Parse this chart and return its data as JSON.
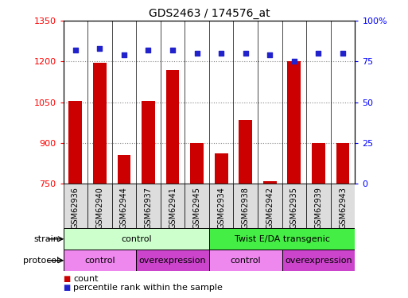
{
  "title": "GDS2463 / 174576_at",
  "samples": [
    "GSM62936",
    "GSM62940",
    "GSM62944",
    "GSM62937",
    "GSM62941",
    "GSM62945",
    "GSM62934",
    "GSM62938",
    "GSM62942",
    "GSM62935",
    "GSM62939",
    "GSM62943"
  ],
  "counts": [
    1055,
    1195,
    855,
    1055,
    1170,
    900,
    860,
    985,
    760,
    1200,
    900,
    900
  ],
  "percentile_ranks": [
    82,
    83,
    79,
    82,
    82,
    80,
    80,
    80,
    79,
    75,
    80,
    80
  ],
  "ylim_left": [
    750,
    1350
  ],
  "ylim_right": [
    0,
    100
  ],
  "yticks_left": [
    750,
    900,
    1050,
    1200,
    1350
  ],
  "yticks_right": [
    0,
    25,
    50,
    75,
    100
  ],
  "bar_color": "#cc0000",
  "dot_color": "#2222cc",
  "strain_groups": [
    {
      "label": "control",
      "start": 0,
      "end": 6,
      "color": "#ccffcc"
    },
    {
      "label": "Twist E/DA transgenic",
      "start": 6,
      "end": 12,
      "color": "#44ee44"
    }
  ],
  "protocol_groups": [
    {
      "label": "control",
      "start": 0,
      "end": 3,
      "color": "#ee88ee"
    },
    {
      "label": "overexpression",
      "start": 3,
      "end": 6,
      "color": "#cc44cc"
    },
    {
      "label": "control",
      "start": 6,
      "end": 9,
      "color": "#ee88ee"
    },
    {
      "label": "overexpression",
      "start": 9,
      "end": 12,
      "color": "#cc44cc"
    }
  ],
  "legend_count_color": "#cc0000",
  "legend_pct_color": "#2222cc",
  "grid_color": "#888888",
  "tick_label_bg": "#dddddd",
  "pct_right_ticks": [
    "0",
    "25",
    "50",
    "75",
    "100%"
  ]
}
